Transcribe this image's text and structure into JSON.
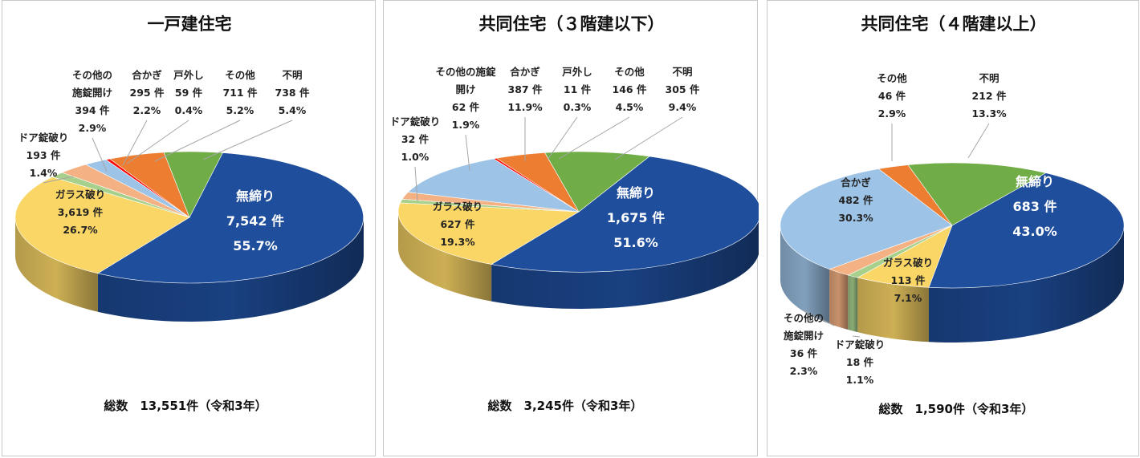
{
  "chart_data": [
    {
      "type": "pie",
      "title": "一戸建住宅",
      "total_label": "総数　13,551件（令和3年）",
      "slices": [
        {
          "name": "無締り",
          "count": "7,542 件",
          "pct": "55.7%",
          "value": 55.7,
          "color": "#1f4e9c"
        },
        {
          "name": "ガラス破り",
          "count": "3,619 件",
          "pct": "26.7%",
          "value": 26.7,
          "color": "#fad667"
        },
        {
          "name": "ドア錠破り",
          "count": "193 件",
          "pct": "1.4%",
          "value": 1.4,
          "color": "#a8d08d"
        },
        {
          "name": "その他の施錠開け",
          "count": "394 件",
          "pct": "2.9%",
          "value": 2.9,
          "color": "#f4b183"
        },
        {
          "name": "合かぎ",
          "count": "295 件",
          "pct": "2.2%",
          "value": 2.2,
          "color": "#9dc3e6"
        },
        {
          "name": "戸外し",
          "count": "59 件",
          "pct": "0.4%",
          "value": 0.4,
          "color": "#ff0000"
        },
        {
          "name": "その他",
          "count": "711 件",
          "pct": "5.2%",
          "value": 5.2,
          "color": "#ed7d31"
        },
        {
          "name": "不明",
          "count": "738 件",
          "pct": "5.4%",
          "value": 5.4,
          "color": "#70ad47"
        }
      ]
    },
    {
      "type": "pie",
      "title": "共同住宅（３階建以下）",
      "total_label": "総数　3,245件（令和3年）",
      "slices": [
        {
          "name": "無締り",
          "count": "1,675 件",
          "pct": "51.6%",
          "value": 51.6,
          "color": "#1f4e9c"
        },
        {
          "name": "ガラス破り",
          "count": "627 件",
          "pct": "19.3%",
          "value": 19.3,
          "color": "#fad667"
        },
        {
          "name": "ドア錠破り",
          "count": "32 件",
          "pct": "1.0%",
          "value": 1.0,
          "color": "#a8d08d"
        },
        {
          "name": "その他の施錠開け",
          "count": "62 件",
          "pct": "1.9%",
          "value": 1.9,
          "color": "#f4b183"
        },
        {
          "name": "合かぎ",
          "count": "387 件",
          "pct": "11.9%",
          "value": 11.9,
          "color": "#9dc3e6"
        },
        {
          "name": "戸外し",
          "count": "11 件",
          "pct": "0.3%",
          "value": 0.3,
          "color": "#ff0000"
        },
        {
          "name": "その他",
          "count": "146 件",
          "pct": "4.5%",
          "value": 4.5,
          "color": "#ed7d31"
        },
        {
          "name": "不明",
          "count": "305 件",
          "pct": "9.4%",
          "value": 9.4,
          "color": "#70ad47"
        }
      ]
    },
    {
      "type": "pie",
      "title": "共同住宅（４階建以上）",
      "total_label": "総数　1,590件（令和3年）",
      "slices": [
        {
          "name": "無締り",
          "count": "683 件",
          "pct": "43.0%",
          "value": 43.0,
          "color": "#1f4e9c"
        },
        {
          "name": "ガラス破り",
          "count": "113 件",
          "pct": "7.1%",
          "value": 7.1,
          "color": "#fad667"
        },
        {
          "name": "ドア錠破り",
          "count": "18 件",
          "pct": "1.1%",
          "value": 1.1,
          "color": "#a8d08d"
        },
        {
          "name": "その他の施錠開け",
          "count": "36 件",
          "pct": "2.3%",
          "value": 2.3,
          "color": "#f4b183"
        },
        {
          "name": "合かぎ",
          "count": "482 件",
          "pct": "30.3%",
          "value": 30.3,
          "color": "#9dc3e6"
        },
        {
          "name": "その他",
          "count": "46 件",
          "pct": "2.9%",
          "value": 2.9,
          "color": "#ed7d31"
        },
        {
          "name": "不明",
          "count": "212 件",
          "pct": "13.3%",
          "value": 13.3,
          "color": "#70ad47"
        }
      ]
    }
  ]
}
